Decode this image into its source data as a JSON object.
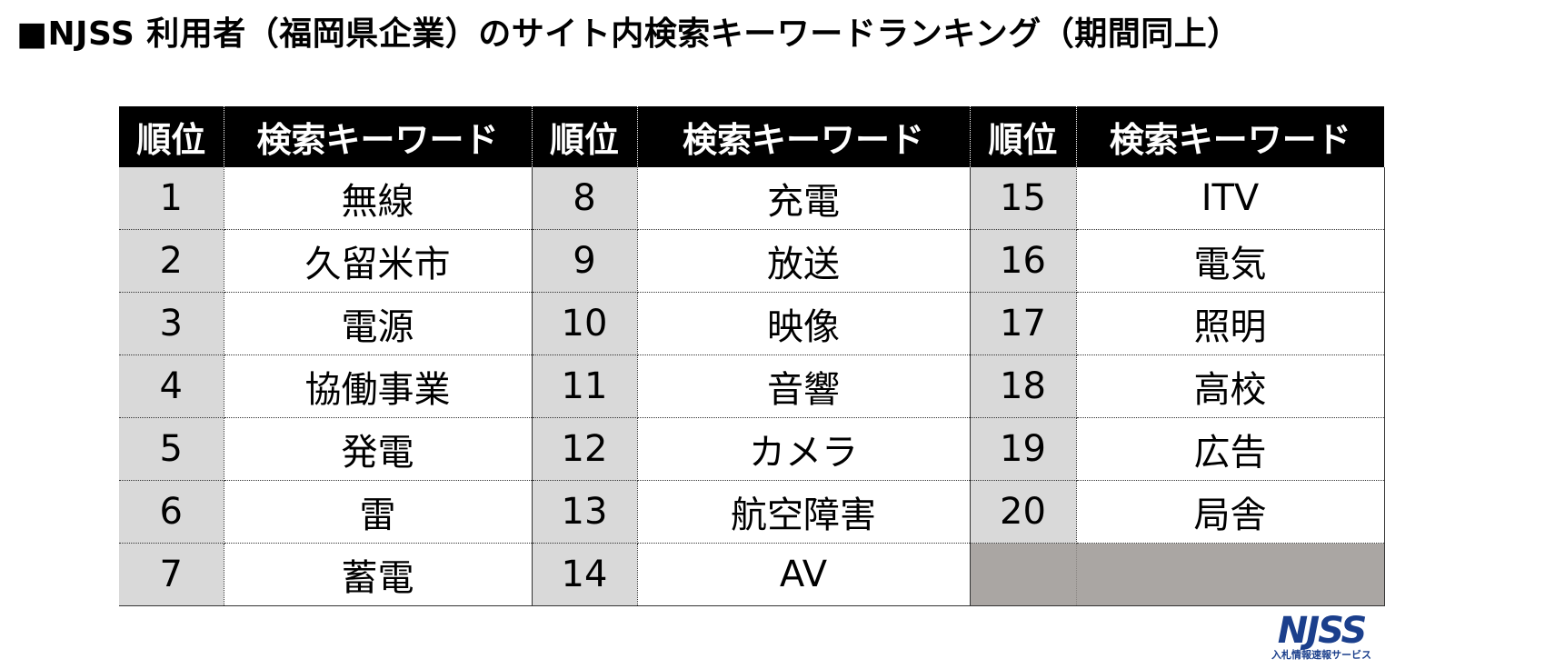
{
  "title": "■NJSS 利用者（福岡県企業）のサイト内検索キーワードランキング（期間同上）",
  "table": {
    "headers": [
      "順位",
      "検索キーワード",
      "順位",
      "検索キーワード",
      "順位",
      "検索キーワード"
    ],
    "rows": [
      [
        "1",
        "無線",
        "8",
        "充電",
        "15",
        "ITV"
      ],
      [
        "2",
        "久留米市",
        "9",
        "放送",
        "16",
        "電気"
      ],
      [
        "3",
        "電源",
        "10",
        "映像",
        "17",
        "照明"
      ],
      [
        "4",
        "協働事業",
        "11",
        "音響",
        "18",
        "高校"
      ],
      [
        "5",
        "発電",
        "12",
        "カメラ",
        "19",
        "広告"
      ],
      [
        "6",
        "雷",
        "13",
        "航空障害",
        "20",
        "局舎"
      ],
      [
        "7",
        "蓄電",
        "14",
        "AV",
        "",
        ""
      ]
    ]
  },
  "logo": {
    "mark": "NJSS",
    "subtitle": "入札情報速報サービス"
  },
  "colors": {
    "header_bg": "#000000",
    "rank_bg": "#d9d9d9",
    "empty_bg": "#aaa6a3",
    "logo": "#1b3f8c"
  }
}
